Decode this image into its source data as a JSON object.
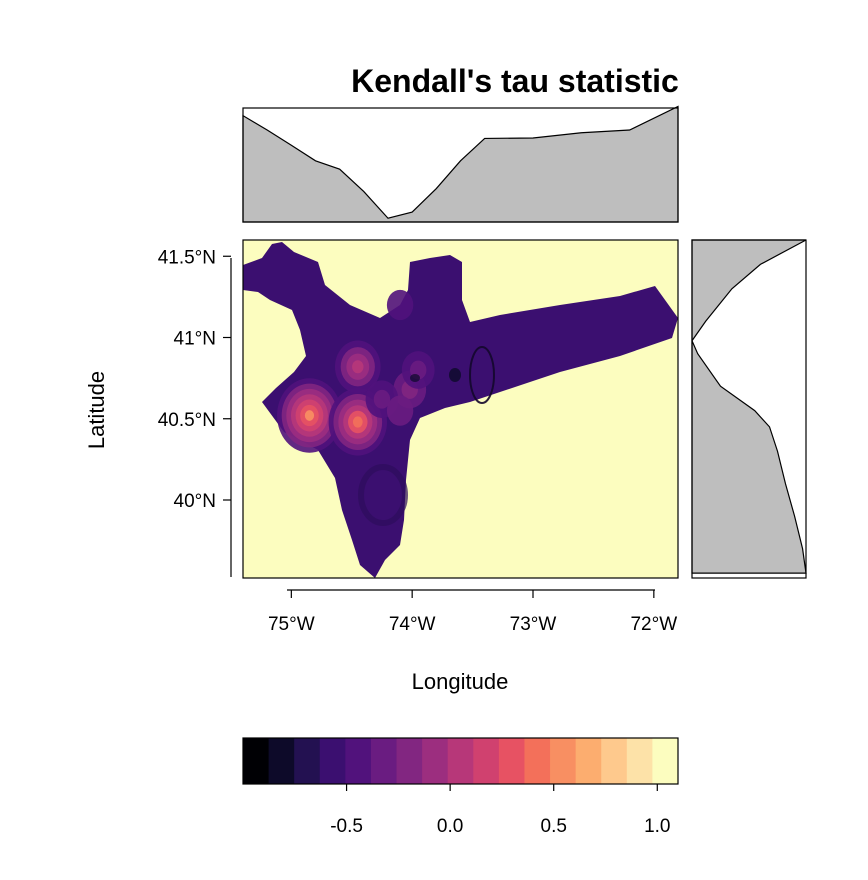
{
  "chart_data": {
    "type": "heatmap",
    "title": "Kendall's tau statistic",
    "xlabel": "Longitude",
    "ylabel": "Latitude",
    "xlim": [
      -75.4,
      -71.8
    ],
    "ylim": [
      39.52,
      41.6
    ],
    "x_ticks": [
      {
        "value": -75,
        "label": "75°W"
      },
      {
        "value": -74,
        "label": "74°W"
      },
      {
        "value": -73,
        "label": "73°W"
      },
      {
        "value": -72,
        "label": "72°W"
      }
    ],
    "y_ticks": [
      {
        "value": 41.5,
        "label": "41.5°N"
      },
      {
        "value": 41.0,
        "label": "41°N"
      },
      {
        "value": 40.5,
        "label": "40.5°N"
      },
      {
        "value": 40.0,
        "label": "40°N"
      }
    ],
    "background_value": 1.0,
    "background_color": "#fcfdbf",
    "region_value": -0.55,
    "region_color": "#3b0f70",
    "hotspots": [
      {
        "lon": -74.85,
        "lat": 40.52,
        "value": 0.5
      },
      {
        "lon": -74.45,
        "lat": 40.48,
        "value": 0.4
      },
      {
        "lon": -74.45,
        "lat": 40.82,
        "value": 0.1
      },
      {
        "lon": -74.02,
        "lat": 40.68,
        "value": -0.2
      },
      {
        "lon": -73.95,
        "lat": 40.8,
        "value": -0.3
      },
      {
        "lon": -74.1,
        "lat": 41.2,
        "value": -0.4
      },
      {
        "lon": -74.25,
        "lat": 40.62,
        "value": -0.3
      },
      {
        "lon": -74.1,
        "lat": 40.55,
        "value": -0.35
      }
    ],
    "colorbar": {
      "range": [
        -1.0,
        1.1
      ],
      "levels": [
        -1.0,
        -0.9,
        -0.8,
        -0.7,
        -0.6,
        -0.5,
        -0.4,
        -0.3,
        -0.2,
        -0.1,
        0.0,
        0.1,
        0.2,
        0.3,
        0.4,
        0.5,
        0.6,
        0.7,
        0.8,
        0.9,
        1.0,
        1.1
      ],
      "colors": [
        "#000004",
        "#0d0a29",
        "#231151",
        "#3b0f70",
        "#51127c",
        "#6a1c81",
        "#822681",
        "#9c2e7f",
        "#b73779",
        "#d0416f",
        "#e75263",
        "#f3705a",
        "#f88f62",
        "#fcad6f",
        "#fec98d",
        "#fde2a8",
        "#fcfdbf"
      ],
      "tick_values": [
        -0.5,
        0.0,
        0.5,
        1.0
      ],
      "tick_labels": [
        "-0.5",
        "0.0",
        "0.5",
        "1.0"
      ]
    },
    "top_marginal": {
      "type": "area",
      "x": [
        -75.4,
        -75.2,
        -75.0,
        -74.8,
        -74.6,
        -74.4,
        -74.2,
        -74.0,
        -73.8,
        -73.6,
        -73.4,
        -73.0,
        -72.6,
        -72.2,
        -71.8
      ],
      "y": [
        0.92,
        0.82,
        0.66,
        0.55,
        0.45,
        0.28,
        0.02,
        0.1,
        0.28,
        0.55,
        0.72,
        0.75,
        0.77,
        0.82,
        1.0
      ]
    },
    "right_marginal": {
      "type": "area",
      "y": [
        41.6,
        41.45,
        41.3,
        41.1,
        40.98,
        40.9,
        40.7,
        40.55,
        40.45,
        40.3,
        40.1,
        39.9,
        39.7,
        39.55
      ],
      "x": [
        1.0,
        0.6,
        0.35,
        0.12,
        0.0,
        0.05,
        0.25,
        0.55,
        0.68,
        0.75,
        0.82,
        0.9,
        0.97,
        1.0
      ]
    }
  }
}
